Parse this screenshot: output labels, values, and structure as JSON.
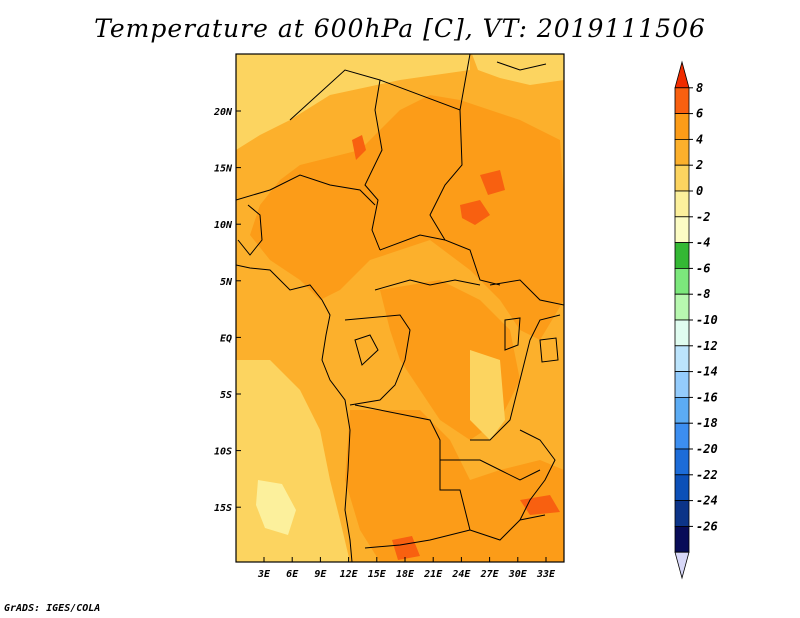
{
  "title": "Temperature at 600hPa [C], VT: 2019111506",
  "credit": "GrADS: IGES/COLA",
  "map": {
    "region": "Central Africa",
    "lon_labels": [
      "3E",
      "6E",
      "9E",
      "12E",
      "15E",
      "18E",
      "21E",
      "24E",
      "27E",
      "30E",
      "33E"
    ],
    "lat_labels": [
      "20N",
      "15N",
      "10N",
      "5N",
      "EQ",
      "5S",
      "10S",
      "15S"
    ]
  },
  "colorbar": {
    "labels": [
      "8",
      "6",
      "4",
      "2",
      "0",
      "-2",
      "-4",
      "-6",
      "-8",
      "-10",
      "-12",
      "-14",
      "-16",
      "-18",
      "-20",
      "-22",
      "-24",
      "-26"
    ],
    "colors": [
      "#f02c00",
      "#f86010",
      "#fc9c18",
      "#fcb02c",
      "#fcd460",
      "#fcf09c",
      "#fcfcc4",
      "#34b834",
      "#7ce87c",
      "#b8f8b0",
      "#e0fcf0",
      "#bce4fc",
      "#94ccfc",
      "#5cacf4",
      "#3c8ef0",
      "#1c6cd8",
      "#0c50b8",
      "#0c3488",
      "#080c58",
      "#d8d8f8"
    ]
  }
}
